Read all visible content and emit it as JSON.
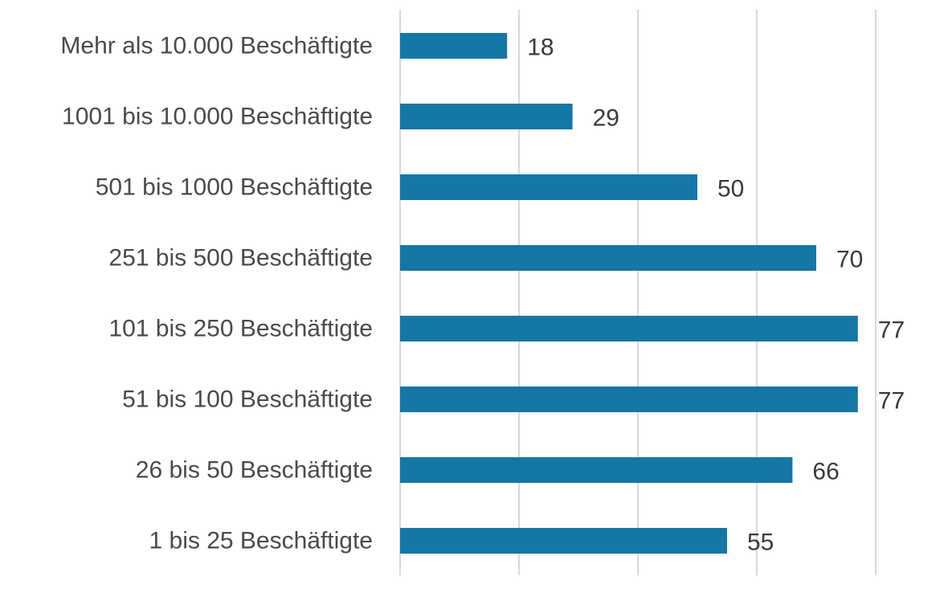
{
  "chart_data": {
    "type": "bar",
    "orientation": "horizontal",
    "categories": [
      "Mehr als 10.000 Beschäftigte",
      "1001 bis 10.000 Beschäftigte",
      "501 bis 1000 Beschäftigte",
      "251 bis 500 Beschäftigte",
      "101 bis 250 Beschäftigte",
      "51 bis 100 Beschäftigte",
      "26 bis 50 Beschäftigte",
      "1 bis 25 Beschäftigte"
    ],
    "values": [
      18,
      29,
      50,
      70,
      77,
      77,
      66,
      55
    ],
    "data_labels": [
      "18",
      "29",
      "50",
      "70",
      "77",
      "77",
      "66",
      "55"
    ],
    "title": "",
    "xlabel": "",
    "ylabel": "",
    "xlim": [
      0,
      80
    ],
    "gridlines": "vertical",
    "gridline_interval": 20,
    "legend": "none",
    "colors": {
      "bar": "#1577a6",
      "grid": "#d9d9d9",
      "category_text": "#4a4a4a",
      "value_text": "#3a3a3a"
    }
  }
}
